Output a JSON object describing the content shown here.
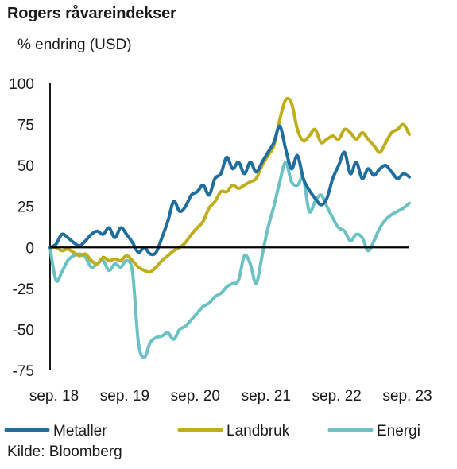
{
  "title": "Rogers råvareindekser",
  "subtitle": "% endring (USD)",
  "source": "Kilde: Bloomberg",
  "chart_data": {
    "type": "line",
    "title": "Rogers råvareindekser",
    "ylabel": "% endring (USD)",
    "ylim": [
      -75,
      100
    ],
    "yticks": [
      100,
      75,
      50,
      25,
      0,
      -25,
      -50,
      -75
    ],
    "xlim": [
      "2018-09",
      "2023-10"
    ],
    "xticks": [
      {
        "x": "2018-09",
        "label": "sep. 18"
      },
      {
        "x": "2019-09",
        "label": "sep. 19"
      },
      {
        "x": "2020-09",
        "label": "sep. 20"
      },
      {
        "x": "2021-09",
        "label": "sep. 21"
      },
      {
        "x": "2022-09",
        "label": "sep. 22"
      },
      {
        "x": "2023-09",
        "label": "sep. 23"
      }
    ],
    "x": [
      "2018-09",
      "2018-10",
      "2018-11",
      "2018-12",
      "2019-01",
      "2019-02",
      "2019-03",
      "2019-04",
      "2019-05",
      "2019-06",
      "2019-07",
      "2019-08",
      "2019-09",
      "2019-10",
      "2019-11",
      "2019-12",
      "2020-01",
      "2020-02",
      "2020-03",
      "2020-04",
      "2020-05",
      "2020-06",
      "2020-07",
      "2020-08",
      "2020-09",
      "2020-10",
      "2020-11",
      "2020-12",
      "2021-01",
      "2021-02",
      "2021-03",
      "2021-04",
      "2021-05",
      "2021-06",
      "2021-07",
      "2021-08",
      "2021-09",
      "2021-10",
      "2021-11",
      "2021-12",
      "2022-01",
      "2022-02",
      "2022-03",
      "2022-04",
      "2022-05",
      "2022-06",
      "2022-07",
      "2022-08",
      "2022-09",
      "2022-10",
      "2022-11",
      "2022-12",
      "2023-01",
      "2023-02",
      "2023-03",
      "2023-04",
      "2023-05",
      "2023-06",
      "2023-07",
      "2023-08",
      "2023-09",
      "2023-10"
    ],
    "series": [
      {
        "name": "Metaller",
        "color": "#1f6e9e",
        "values": [
          0,
          2,
          8,
          6,
          3,
          1,
          4,
          8,
          10,
          8,
          12,
          6,
          12,
          8,
          3,
          -3,
          0,
          -4,
          -3,
          6,
          16,
          28,
          22,
          25,
          32,
          34,
          38,
          32,
          42,
          45,
          55,
          48,
          52,
          45,
          52,
          46,
          52,
          58,
          64,
          74,
          60,
          48,
          56,
          42,
          35,
          30,
          26,
          30,
          42,
          50,
          58,
          45,
          52,
          42,
          48,
          44,
          48,
          50,
          46,
          42,
          45,
          43
        ]
      },
      {
        "name": "Landbruk",
        "color": "#bfae1c",
        "values": [
          0,
          0,
          -2,
          -1,
          -3,
          -5,
          -4,
          -8,
          -10,
          -6,
          -8,
          -7,
          -8,
          -5,
          -8,
          -12,
          -14,
          -15,
          -12,
          -8,
          -5,
          -2,
          0,
          3,
          8,
          12,
          16,
          24,
          28,
          34,
          34,
          38,
          36,
          38,
          40,
          42,
          50,
          56,
          62,
          78,
          90,
          88,
          72,
          65,
          68,
          72,
          64,
          66,
          68,
          66,
          72,
          70,
          66,
          70,
          66,
          62,
          58,
          64,
          70,
          72,
          75,
          69
        ]
      },
      {
        "name": "Energi",
        "color": "#6cc1c4",
        "values": [
          0,
          -20,
          -15,
          -8,
          -5,
          -4,
          -6,
          -12,
          -10,
          -8,
          -14,
          -10,
          -12,
          -8,
          -15,
          -58,
          -67,
          -58,
          -55,
          -54,
          -52,
          -56,
          -50,
          -48,
          -44,
          -40,
          -36,
          -34,
          -30,
          -28,
          -24,
          -22,
          -20,
          -5,
          -10,
          -22,
          -5,
          12,
          25,
          40,
          52,
          40,
          38,
          42,
          22,
          28,
          32,
          25,
          18,
          12,
          10,
          4,
          8,
          6,
          -2,
          4,
          12,
          17,
          20,
          22,
          24,
          27
        ]
      }
    ],
    "legend_position": "bottom",
    "grid": false
  },
  "legend": [
    {
      "label": "Metaller",
      "color": "#1f6e9e"
    },
    {
      "label": "Landbruk",
      "color": "#bfae1c"
    },
    {
      "label": "Energi",
      "color": "#6cc1c4"
    }
  ]
}
